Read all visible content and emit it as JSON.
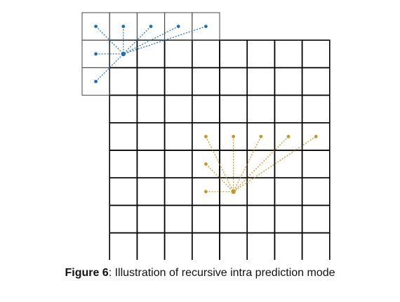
{
  "figure": {
    "caption_label": "Figure 6",
    "caption_text": ": Illustration of recursive intra prediction mode"
  },
  "colors": {
    "grid": "#000000",
    "top_light_grid": "#444444",
    "blue": "#1f6fb5",
    "gold": "#c8961e"
  },
  "diagram": {
    "main_grid": {
      "rows": 8,
      "cols": 8
    },
    "reference_block": {
      "rows": 3,
      "cols": 5
    },
    "blue_example": {
      "name": "blue",
      "target": [
        1,
        1
      ],
      "sources": [
        [
          0,
          0
        ],
        [
          0,
          1
        ],
        [
          0,
          2
        ],
        [
          0,
          3
        ],
        [
          0,
          4
        ],
        [
          1,
          0
        ],
        [
          2,
          0
        ]
      ]
    },
    "gold_example": {
      "name": "gold",
      "target": [
        6,
        5
      ],
      "sources": [
        [
          4,
          4
        ],
        [
          4,
          5
        ],
        [
          4,
          6
        ],
        [
          4,
          7
        ],
        [
          4,
          8
        ],
        [
          5,
          4
        ],
        [
          6,
          4
        ]
      ]
    }
  }
}
